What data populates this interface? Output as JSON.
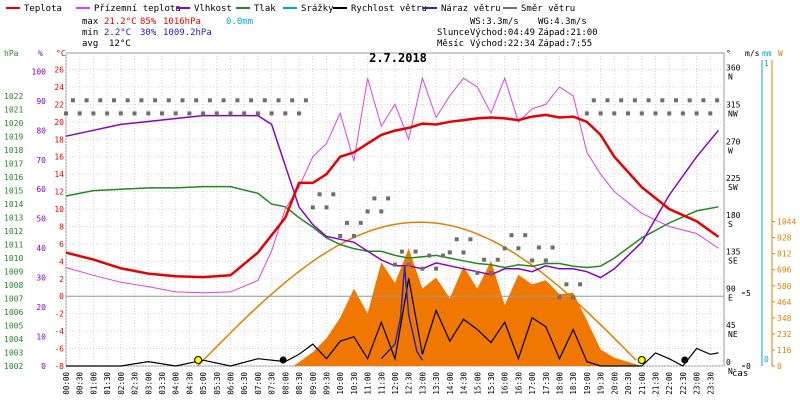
{
  "legend": [
    {
      "label": "Teplota",
      "color": "#e60000"
    },
    {
      "label": "Přízemní teplota",
      "color": "#e040e0"
    },
    {
      "label": "Vlhkost",
      "color": "#8a00c8"
    },
    {
      "label": "Tlak",
      "color": "#1f8a1f"
    },
    {
      "label": "Srážky",
      "color": "#00a8d8"
    },
    {
      "label": "Rychlost větru",
      "color": "#000000"
    },
    {
      "label": "Náraz větru",
      "color": "#2a2ab0"
    },
    {
      "label": "Směr větru",
      "color": "#707070"
    }
  ],
  "stats": {
    "max_label": "max",
    "max_temp": "21.2°C",
    "max_hum": "85%",
    "max_press": "1016hPa",
    "rain": "0.0mm",
    "min_label": "min",
    "min_temp": "2.2°C",
    "min_hum": "30%",
    "min_press": "1009.2hPa",
    "avg_label": "avg",
    "avg_temp": "12°C"
  },
  "wind": {
    "ws": "WS:3.3m/s",
    "wg": "WG:4.3m/s"
  },
  "sun": {
    "label": "Slunce",
    "rise": "Východ:04:49",
    "set": "Západ:21:00"
  },
  "moon": {
    "label": "Měsíc",
    "rise": "Východ:22:34",
    "set": "Západ:7:55"
  },
  "colors": {
    "orange": "#f07800",
    "sun": "#e08000",
    "marker_yellow": "#ffff00"
  },
  "chart_data": {
    "type": "line",
    "title": "2.7.2018",
    "xlabel": "čas",
    "x_ticks": [
      "00:00",
      "00:30",
      "01:00",
      "01:30",
      "02:00",
      "02:30",
      "03:00",
      "03:30",
      "04:00",
      "04:30",
      "05:00",
      "05:30",
      "06:00",
      "06:30",
      "07:00",
      "07:30",
      "08:00",
      "08:30",
      "09:00",
      "09:30",
      "10:00",
      "10:30",
      "11:00",
      "11:30",
      "12:00",
      "12:30",
      "13:00",
      "13:30",
      "14:00",
      "14:30",
      "15:00",
      "15:30",
      "16:00",
      "16:30",
      "17:00",
      "17:30",
      "18:00",
      "18:30",
      "19:00",
      "19:30",
      "20:00",
      "20:30",
      "21:00",
      "21:30",
      "22:00",
      "22:30",
      "23:00",
      "23:30"
    ],
    "axes": {
      "hpa": {
        "label": "hPa",
        "ticks": [
          "1002",
          "1003",
          "1004",
          "1005",
          "1006",
          "1007",
          "1008",
          "1009",
          "1010",
          "1011",
          "1012",
          "1013",
          "1014",
          "1015",
          "1016",
          "1017",
          "1018",
          "1019",
          "1020",
          "1021",
          "1022"
        ]
      },
      "percent": {
        "label": "%",
        "ticks": [
          "0",
          "10",
          "20",
          "30",
          "40",
          "50",
          "60",
          "70",
          "80",
          "90",
          "100"
        ]
      },
      "celsius": {
        "label": "°C",
        "ticks": [
          "-8",
          "-6",
          "-4",
          "-2",
          "0",
          "2",
          "4",
          "6",
          "8",
          "10",
          "12",
          "14",
          "16",
          "18",
          "20",
          "22",
          "24",
          "26"
        ]
      },
      "direction": {
        "label": "°",
        "ticks": [
          {
            "deg": "0",
            "dir": "N"
          },
          {
            "deg": "45",
            "dir": "NE"
          },
          {
            "deg": "90",
            "dir": "E"
          },
          {
            "deg": "135",
            "dir": "SE"
          },
          {
            "deg": "180",
            "dir": "S"
          },
          {
            "deg": "225",
            "dir": "SW"
          },
          {
            "deg": "270",
            "dir": "W"
          },
          {
            "deg": "315",
            "dir": "NW"
          },
          {
            "deg": "360",
            "dir": "N"
          }
        ]
      },
      "ms": {
        "label": "m/s",
        "ticks": [
          "0",
          "5"
        ]
      },
      "mm": {
        "label": "mm",
        "ticks": [
          "0",
          "1"
        ]
      },
      "wm2": {
        "label": "W",
        "ticks": [
          "0",
          "116",
          "232",
          "348",
          "464",
          "580",
          "696",
          "812",
          "928",
          "1044"
        ]
      }
    },
    "series": [
      {
        "name": "Teplota",
        "unit": "°C",
        "x": [
          0,
          1,
          2,
          3,
          4,
          5,
          6,
          7,
          7.5,
          8,
          8.5,
          9,
          9.5,
          10,
          10.5,
          11,
          11.5,
          12,
          12.5,
          13,
          13.5,
          14,
          14.5,
          15,
          15.5,
          16,
          16.5,
          17,
          17.5,
          18,
          18.5,
          19,
          19.5,
          20,
          21,
          22,
          23,
          23.8
        ],
        "values": [
          5,
          4.2,
          3.2,
          2.6,
          2.3,
          2.2,
          2.4,
          5,
          7,
          9,
          13,
          13,
          14,
          16,
          16.5,
          17.5,
          18.5,
          19,
          19.3,
          19.8,
          19.7,
          20,
          20.2,
          20.4,
          20.5,
          20.4,
          20.2,
          20.6,
          20.8,
          20.5,
          20.6,
          20,
          18.5,
          16,
          12.5,
          10,
          8.6,
          6.8
        ]
      },
      {
        "name": "Přízemní teplota",
        "unit": "°C",
        "x": [
          0,
          1,
          2,
          3,
          4,
          5,
          6,
          7,
          7.5,
          8,
          8.5,
          9,
          9.5,
          10,
          10.5,
          11,
          11.5,
          12,
          12.5,
          13,
          13.5,
          14,
          14.5,
          15,
          15.5,
          16,
          16.5,
          17,
          17.5,
          18,
          18.5,
          19,
          19.5,
          20,
          21,
          22,
          23,
          23.8
        ],
        "values": [
          3.3,
          2.4,
          1.6,
          1.1,
          0.5,
          0.4,
          0.5,
          1.8,
          5.2,
          10,
          12.5,
          16,
          17.5,
          21,
          15.5,
          25,
          19.5,
          22,
          18,
          25,
          20.5,
          23,
          25,
          24,
          21,
          25,
          20,
          21.5,
          22,
          24,
          23,
          16.5,
          14,
          12,
          9.5,
          8,
          7.2,
          5.5
        ]
      },
      {
        "name": "Vlhkost",
        "unit": "%",
        "x": [
          0,
          1,
          2,
          3,
          4,
          5,
          6,
          7,
          7.5,
          8,
          8.5,
          9,
          9.5,
          10,
          10.5,
          11,
          11.5,
          12,
          12.5,
          13,
          13.5,
          14,
          14.5,
          15,
          15.5,
          16,
          16.5,
          17,
          17.5,
          18,
          18.5,
          19,
          19.5,
          20,
          21,
          22,
          23,
          23.8
        ],
        "values": [
          78,
          80,
          82,
          83,
          84,
          85,
          85,
          85,
          82,
          68,
          54,
          48,
          44,
          43,
          42,
          39,
          36,
          34,
          34,
          33,
          35,
          34,
          33,
          32,
          31,
          33,
          33,
          32,
          34,
          33,
          33,
          32,
          30,
          33,
          42,
          58,
          71,
          80
        ]
      },
      {
        "name": "Tlak",
        "unit": "hPa",
        "x": [
          0,
          1,
          2,
          3,
          4,
          5,
          6,
          7,
          7.5,
          8,
          8.5,
          9,
          9.5,
          10,
          10.5,
          11,
          11.5,
          12,
          12.5,
          13,
          13.5,
          14,
          14.5,
          15,
          15.5,
          16,
          16.5,
          17,
          17.5,
          18,
          18.5,
          19,
          19.5,
          20,
          21,
          22,
          23,
          23.8
        ],
        "values": [
          1014.6,
          1015,
          1015.1,
          1015.2,
          1015.2,
          1015.3,
          1015.3,
          1014.8,
          1014,
          1013.8,
          1013,
          1012.3,
          1011.5,
          1011,
          1010.7,
          1010.5,
          1010.5,
          1010.2,
          1010,
          1010.1,
          1010.2,
          1010,
          1009.8,
          1009.6,
          1009.5,
          1009.3,
          1009.5,
          1009.4,
          1009.6,
          1009.6,
          1009.4,
          1009.3,
          1009.4,
          1010,
          1011.5,
          1012.6,
          1013.5,
          1013.8
        ]
      },
      {
        "name": "Rychlost větru",
        "unit": "m/s",
        "x": [
          0,
          2,
          3,
          4,
          5,
          6,
          7,
          8,
          8.5,
          9,
          9.5,
          10,
          10.5,
          11,
          11.5,
          12,
          12.5,
          13,
          13.5,
          14,
          14.5,
          15,
          15.5,
          16,
          16.5,
          17,
          17.5,
          18,
          18.5,
          19,
          19.5,
          20,
          20.5,
          21,
          21.5,
          22,
          22.5,
          23,
          23.5,
          23.8
        ],
        "values": [
          0,
          0,
          0.3,
          0,
          0.4,
          0,
          0.5,
          0.3,
          0.8,
          1.5,
          0.5,
          1.7,
          2,
          0.5,
          3,
          0.5,
          6,
          0.8,
          3.8,
          1.7,
          3.2,
          2.5,
          1.6,
          3,
          0.5,
          3.3,
          2.7,
          0.5,
          2.5,
          0.3,
          0,
          0,
          0,
          0,
          0.9,
          0.5,
          0,
          1.2,
          0.8,
          0.9
        ]
      },
      {
        "name": "Náraz větru",
        "unit": "m/s",
        "x": [
          11.5,
          12,
          12.2,
          12.35,
          12.5,
          12.8,
          13
        ],
        "values": [
          0.5,
          1.5,
          3.3,
          6.8,
          3.5,
          1,
          0.4
        ]
      },
      {
        "name": "Směr větru",
        "unit": "°",
        "x": [
          0,
          1,
          2,
          3,
          4,
          5,
          6,
          7,
          8,
          9,
          10,
          11,
          12,
          13,
          14,
          15,
          16,
          17,
          18,
          19,
          20,
          21,
          22,
          23
        ],
        "values": [
          315,
          315,
          315,
          315,
          315,
          315,
          315,
          315,
          315,
          200,
          165,
          195,
          130,
          125,
          145,
          120,
          150,
          135,
          90,
          315,
          315,
          315,
          315,
          315
        ]
      },
      {
        "name": "Solar",
        "unit": "W",
        "x": [
          0,
          8.3,
          9,
          9.5,
          10,
          10.5,
          11,
          11.5,
          12,
          12.5,
          13,
          13.5,
          14,
          14.5,
          15,
          15.5,
          16,
          16.5,
          17,
          17.5,
          18,
          18.5,
          19,
          19.5,
          20,
          21,
          24
        ],
        "values": [
          0,
          0,
          100,
          200,
          350,
          560,
          380,
          750,
          600,
          850,
          560,
          640,
          490,
          720,
          560,
          760,
          440,
          660,
          590,
          620,
          520,
          530,
          330,
          120,
          60,
          0,
          0
        ]
      },
      {
        "name": "Srážky",
        "unit": "mm",
        "x": [
          0,
          24
        ],
        "values": [
          0,
          0
        ]
      }
    ]
  }
}
